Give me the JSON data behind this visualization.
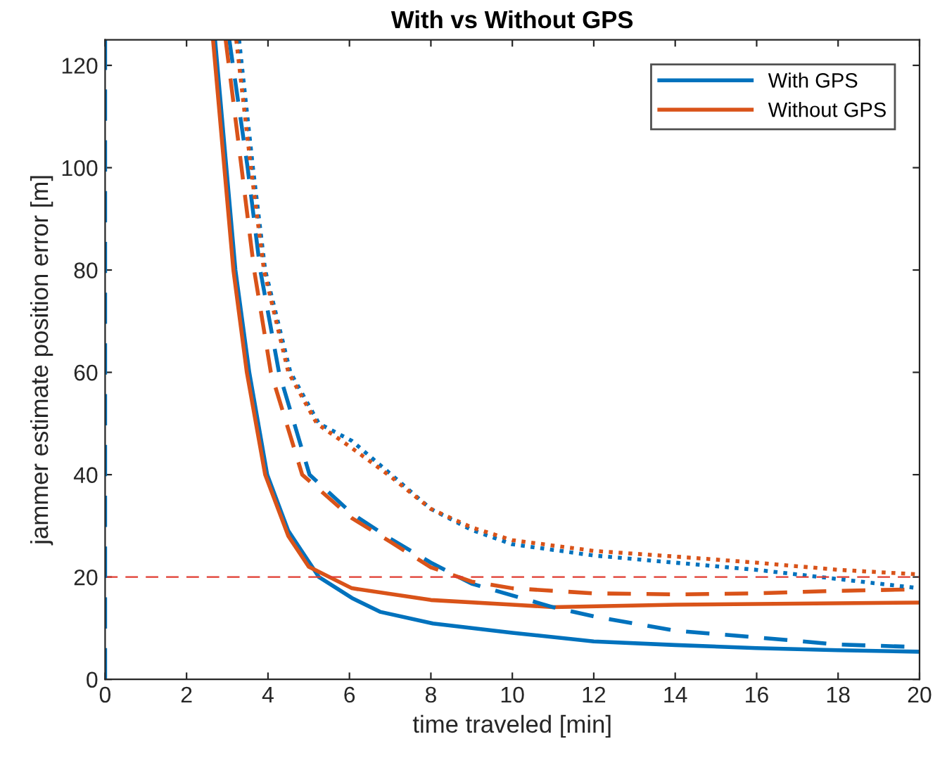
{
  "chart_data": {
    "type": "line",
    "title": "With vs Without GPS",
    "xlabel": "time traveled [min]",
    "ylabel": "jammer estimate position error [m]",
    "xlim": [
      0,
      20
    ],
    "xticks": [
      0,
      2,
      4,
      6,
      8,
      10,
      12,
      14,
      16,
      18,
      20
    ],
    "ylim": [
      0,
      125
    ],
    "yticks": [
      0,
      20,
      40,
      60,
      80,
      100,
      120
    ],
    "grid": false,
    "legend": "top right",
    "marker": "none",
    "series": [
      {
        "name": "With GPS",
        "color": "#0072bd",
        "line_style": "solid",
        "x": [
          2.7,
          3.2,
          3.54,
          3.98,
          4.5,
          5.0,
          5.25,
          6.06,
          6.75,
          8.05,
          10,
          12,
          14,
          16,
          18,
          20
        ],
        "values": [
          125,
          80,
          60,
          40,
          29,
          23,
          20,
          15.9,
          13.2,
          10.9,
          9.1,
          7.4,
          6.7,
          6.1,
          5.7,
          5.4
        ]
      },
      {
        "name": "Without GPS",
        "color": "#d95319",
        "line_style": "solid",
        "x": [
          2.65,
          3.15,
          3.48,
          3.93,
          4.5,
          5.0,
          6.06,
          8,
          10,
          11,
          14,
          20
        ],
        "values": [
          125,
          80,
          60,
          40,
          28,
          22,
          17.8,
          15.5,
          14.6,
          14.1,
          14.6,
          15.0
        ]
      },
      {
        "color": "#0072bd",
        "line_style": "dashed",
        "x": [
          3.05,
          3.5,
          3.81,
          4.27,
          5.02,
          6.06,
          7,
          8,
          9,
          10,
          11,
          12,
          14,
          16,
          18,
          20
        ],
        "values": [
          125,
          100,
          80,
          60,
          40,
          32.4,
          27.5,
          22.8,
          18.7,
          16.4,
          14.1,
          12.3,
          9.5,
          8.2,
          6.8,
          6.3
        ]
      },
      {
        "color": "#d95319",
        "line_style": "dashed",
        "x": [
          2.96,
          3.35,
          3.66,
          4.07,
          4.84,
          6.06,
          7,
          8,
          9,
          10,
          12,
          14,
          16,
          18,
          20
        ],
        "values": [
          125,
          100,
          80,
          60,
          40,
          31.5,
          26.9,
          21.9,
          19.1,
          17.8,
          16.8,
          16.6,
          16.8,
          17.3,
          17.6
        ]
      },
      {
        "color": "#0072bd",
        "line_style": "dotted",
        "x": [
          3.29,
          3.63,
          3.93,
          4.55,
          5.25,
          6.06,
          7,
          8,
          9,
          10,
          12,
          14,
          16,
          18,
          20
        ],
        "values": [
          125,
          100,
          80,
          60,
          50,
          46.6,
          40.2,
          33.3,
          29.2,
          26.4,
          24.2,
          22.8,
          21.4,
          19.6,
          17.8
        ]
      },
      {
        "color": "#d95319",
        "line_style": "dotted",
        "x": [
          3.22,
          3.58,
          3.9,
          4.5,
          5.2,
          6.06,
          7,
          8,
          9,
          10,
          12,
          14,
          16,
          18,
          20
        ],
        "values": [
          125,
          100,
          80,
          60,
          50,
          45.2,
          39.7,
          33.3,
          29.7,
          27.2,
          25.1,
          24.0,
          22.8,
          21.4,
          20.5
        ]
      }
    ],
    "ref_lines": [
      {
        "axis": "y",
        "value": 20,
        "color": "#e03c31",
        "line_style": "dashed"
      },
      {
        "axis": "x",
        "value": 0,
        "color": "#0072bd",
        "line_style": "dashed"
      }
    ]
  }
}
